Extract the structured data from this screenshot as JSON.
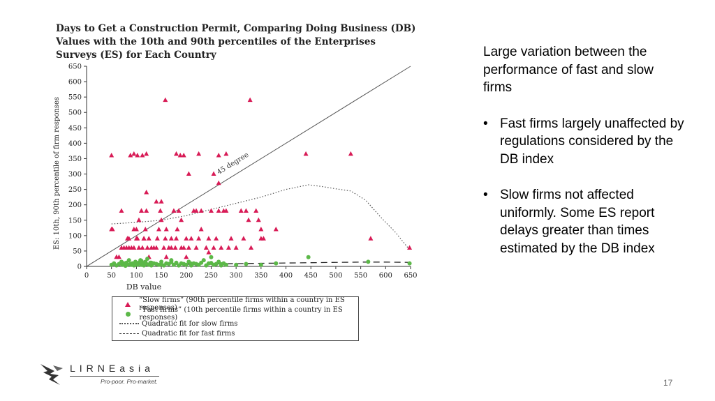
{
  "chart_data": {
    "type": "scatter",
    "title": "Days to Get a Construction Permit, Comparing Doing Business (DB) Values with the 10th and 90th percentiles of the Enterprises Surveys (ES) for Each Country",
    "xlabel": "DB value",
    "ylabel": "ES: 10th, 90th percentile of firm responses",
    "xlim": [
      0,
      650
    ],
    "ylim": [
      0,
      650
    ],
    "xticks": [
      0,
      50,
      100,
      150,
      200,
      250,
      300,
      350,
      400,
      450,
      500,
      550,
      600,
      650
    ],
    "yticks": [
      0,
      50,
      100,
      150,
      200,
      250,
      300,
      350,
      400,
      450,
      500,
      550,
      600,
      650
    ],
    "reference_line": {
      "label": "45 degree",
      "x": [
        0,
        650
      ],
      "y": [
        0,
        650
      ]
    },
    "series": [
      {
        "name": "“Slow firms” (90th percentile firms within a country in ES responses)",
        "marker": "triangle",
        "color": "#d81b56",
        "x": [
          50,
          52,
          70,
          82,
          88,
          95,
          102,
          110,
          100,
          112,
          120,
          158,
          180,
          188,
          195,
          205,
          225,
          255,
          265,
          280,
          328,
          440,
          530,
          50,
          70,
          80,
          85,
          90,
          95,
          100,
          102,
          105,
          110,
          112,
          115,
          118,
          120,
          122,
          125,
          130,
          140,
          142,
          145,
          148,
          150,
          155,
          158,
          160,
          165,
          170,
          175,
          178,
          180,
          182,
          185,
          190,
          195,
          200,
          205,
          210,
          215,
          220,
          225,
          230,
          240,
          245,
          250,
          255,
          260,
          265,
          270,
          275,
          280,
          285,
          290,
          300,
          310,
          315,
          320,
          325,
          330,
          340,
          345,
          350,
          355,
          380,
          570,
          648,
          60,
          65,
          75,
          85,
          95,
          105,
          115,
          125,
          135,
          160,
          170,
          200,
          245,
          265,
          350,
          140,
          150,
          190,
          220,
          120,
          230
        ],
        "y": [
          360,
          120,
          180,
          90,
          360,
          365,
          360,
          180,
          90,
          360,
          365,
          540,
          365,
          360,
          360,
          300,
          365,
          300,
          360,
          365,
          540,
          365,
          365,
          120,
          60,
          60,
          90,
          60,
          120,
          120,
          90,
          150,
          180,
          60,
          90,
          120,
          180,
          60,
          90,
          60,
          60,
          90,
          120,
          180,
          150,
          60,
          90,
          120,
          60,
          90,
          180,
          60,
          90,
          120,
          180,
          60,
          60,
          90,
          60,
          90,
          180,
          60,
          90,
          180,
          60,
          90,
          180,
          60,
          90,
          180,
          60,
          180,
          180,
          60,
          90,
          60,
          180,
          90,
          180,
          150,
          60,
          180,
          150,
          120,
          90,
          120,
          90,
          60,
          30,
          30,
          60,
          60,
          60,
          60,
          90,
          30,
          60,
          30,
          60,
          30,
          45,
          270,
          90,
          210,
          210,
          150,
          180,
          240,
          120
        ],
        "y_extra": []
      },
      {
        "name": "“Fast firms” (10th percentile firms within a country in ES responses)",
        "marker": "circle",
        "color": "#5cb848",
        "x": [
          50,
          55,
          60,
          65,
          70,
          72,
          75,
          78,
          80,
          82,
          85,
          88,
          90,
          92,
          95,
          98,
          100,
          102,
          105,
          108,
          110,
          112,
          115,
          118,
          120,
          122,
          125,
          128,
          130,
          135,
          140,
          145,
          150,
          155,
          160,
          165,
          170,
          175,
          180,
          185,
          190,
          195,
          200,
          205,
          210,
          215,
          220,
          225,
          230,
          235,
          240,
          245,
          250,
          255,
          260,
          265,
          270,
          275,
          280,
          300,
          320,
          350,
          380,
          445,
          565,
          648,
          110,
          130,
          150,
          170,
          210,
          250,
          270
        ],
        "y": [
          5,
          10,
          3,
          8,
          15,
          5,
          10,
          2,
          12,
          6,
          20,
          8,
          5,
          10,
          3,
          15,
          8,
          5,
          12,
          20,
          5,
          10,
          3,
          15,
          8,
          25,
          5,
          12,
          3,
          10,
          8,
          5,
          15,
          3,
          10,
          8,
          20,
          5,
          12,
          3,
          10,
          8,
          5,
          15,
          3,
          10,
          8,
          5,
          12,
          20,
          3,
          10,
          30,
          5,
          8,
          15,
          3,
          10,
          5,
          5,
          8,
          5,
          10,
          30,
          15,
          10,
          18,
          12,
          6,
          14,
          9,
          11,
          7
        ]
      }
    ],
    "fits": [
      {
        "name": "Quadratic fit for slow firms",
        "style": "dotted",
        "x": [
          50,
          100,
          150,
          200,
          250,
          300,
          350,
          400,
          445,
          470,
          500,
          530,
          560,
          590,
          620,
          650
        ],
        "y": [
          138,
          143,
          150,
          165,
          185,
          205,
          225,
          250,
          265,
          260,
          252,
          245,
          215,
          160,
          110,
          50
        ]
      },
      {
        "name": "Quadratic fit for fast firms",
        "style": "dashed",
        "x": [
          50,
          100,
          150,
          200,
          250,
          300,
          350,
          400,
          450,
          500,
          550,
          600,
          650
        ],
        "y": [
          4,
          5,
          6,
          7,
          8,
          9,
          10,
          11,
          12,
          13,
          14,
          14,
          13
        ]
      }
    ]
  },
  "legend": {
    "slow": "“Slow firms” (90th percentile firms within a country in ES responses)",
    "fast": "“Fast firms” (10th percentile firms within a country in ES responses)",
    "slow_fit": "Quadratic fit for slow firms",
    "fast_fit": "Quadratic fit for fast firms"
  },
  "side_panel": {
    "intro": "Large variation between the performance of fast and slow firms",
    "bullets": [
      " Fast firms largely unaffected by regulations considered by the DB index",
      "Slow firms not affected uniformly. Some ES report delays greater than times estimated by the DB index"
    ]
  },
  "logo": {
    "name": "LIRNEasia",
    "tagline": "Pro-poor. Pro-market."
  },
  "page_number": "17"
}
